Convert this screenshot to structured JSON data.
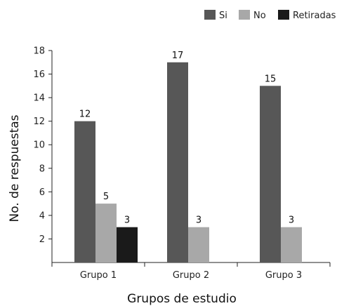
{
  "chart_data": {
    "type": "bar",
    "categories": [
      "Grupo 1",
      "Grupo 2",
      "Grupo 3"
    ],
    "series": [
      {
        "name": "Si",
        "values": [
          12,
          17,
          15
        ],
        "color": "#575757"
      },
      {
        "name": "No",
        "values": [
          5,
          3,
          3
        ],
        "color": "#a8a8a8"
      },
      {
        "name": "Retiradas",
        "values": [
          3,
          null,
          null
        ],
        "color": "#1a1a1a"
      }
    ],
    "data_labels": [
      [
        "12",
        "17",
        "15"
      ],
      [
        "5",
        "3",
        "3"
      ],
      [
        "3",
        null,
        null
      ]
    ],
    "xlabel": "Grupos de estudio",
    "ylabel": "No. de respuestas",
    "ylim": [
      0,
      18
    ],
    "yticks": [
      2,
      4,
      6,
      8,
      10,
      12,
      14,
      16,
      18
    ],
    "legend_position": "top-right",
    "grid": false
  }
}
